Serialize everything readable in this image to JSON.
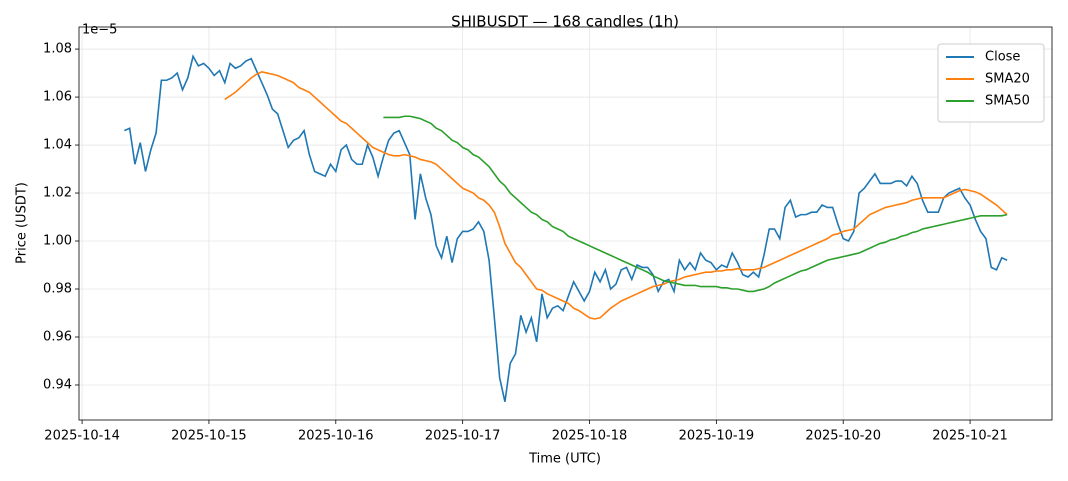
{
  "chart_data": {
    "type": "line",
    "title": "SHIBUSDT — 168 candles (1h)",
    "x_label": "Time (UTC)",
    "y_label": "Price (USDT)",
    "y_offset_label": "1e−5",
    "x": [
      "2025-10-14T08:00",
      "2025-10-14T09:00",
      "2025-10-14T10:00",
      "2025-10-14T11:00",
      "2025-10-14T12:00",
      "2025-10-14T13:00",
      "2025-10-14T14:00",
      "2025-10-14T15:00",
      "2025-10-14T16:00",
      "2025-10-14T17:00",
      "2025-10-14T18:00",
      "2025-10-14T19:00",
      "2025-10-14T20:00",
      "2025-10-14T21:00",
      "2025-10-14T22:00",
      "2025-10-14T23:00",
      "2025-10-15T00:00",
      "2025-10-15T01:00",
      "2025-10-15T02:00",
      "2025-10-15T03:00",
      "2025-10-15T04:00",
      "2025-10-15T05:00",
      "2025-10-15T06:00",
      "2025-10-15T07:00",
      "2025-10-15T08:00",
      "2025-10-15T09:00",
      "2025-10-15T10:00",
      "2025-10-15T11:00",
      "2025-10-15T12:00",
      "2025-10-15T13:00",
      "2025-10-15T14:00",
      "2025-10-15T15:00",
      "2025-10-15T16:00",
      "2025-10-15T17:00",
      "2025-10-15T18:00",
      "2025-10-15T19:00",
      "2025-10-15T20:00",
      "2025-10-15T21:00",
      "2025-10-15T22:00",
      "2025-10-15T23:00",
      "2025-10-16T00:00",
      "2025-10-16T01:00",
      "2025-10-16T02:00",
      "2025-10-16T03:00",
      "2025-10-16T04:00",
      "2025-10-16T05:00",
      "2025-10-16T06:00",
      "2025-10-16T07:00",
      "2025-10-16T08:00",
      "2025-10-16T09:00",
      "2025-10-16T10:00",
      "2025-10-16T11:00",
      "2025-10-16T12:00",
      "2025-10-16T13:00",
      "2025-10-16T14:00",
      "2025-10-16T15:00",
      "2025-10-16T16:00",
      "2025-10-16T17:00",
      "2025-10-16T18:00",
      "2025-10-16T19:00",
      "2025-10-16T20:00",
      "2025-10-16T21:00",
      "2025-10-16T22:00",
      "2025-10-16T23:00",
      "2025-10-17T00:00",
      "2025-10-17T01:00",
      "2025-10-17T02:00",
      "2025-10-17T03:00",
      "2025-10-17T04:00",
      "2025-10-17T05:00",
      "2025-10-17T06:00",
      "2025-10-17T07:00",
      "2025-10-17T08:00",
      "2025-10-17T09:00",
      "2025-10-17T10:00",
      "2025-10-17T11:00",
      "2025-10-17T12:00",
      "2025-10-17T13:00",
      "2025-10-17T14:00",
      "2025-10-17T15:00",
      "2025-10-17T16:00",
      "2025-10-17T17:00",
      "2025-10-17T18:00",
      "2025-10-17T19:00",
      "2025-10-17T20:00",
      "2025-10-17T21:00",
      "2025-10-17T22:00",
      "2025-10-17T23:00",
      "2025-10-18T00:00",
      "2025-10-18T01:00",
      "2025-10-18T02:00",
      "2025-10-18T03:00",
      "2025-10-18T04:00",
      "2025-10-18T05:00",
      "2025-10-18T06:00",
      "2025-10-18T07:00",
      "2025-10-18T08:00",
      "2025-10-18T09:00",
      "2025-10-18T10:00",
      "2025-10-18T11:00",
      "2025-10-18T12:00",
      "2025-10-18T13:00",
      "2025-10-18T14:00",
      "2025-10-18T15:00",
      "2025-10-18T16:00",
      "2025-10-18T17:00",
      "2025-10-18T18:00",
      "2025-10-18T19:00",
      "2025-10-18T20:00",
      "2025-10-18T21:00",
      "2025-10-18T22:00",
      "2025-10-18T23:00",
      "2025-10-19T00:00",
      "2025-10-19T01:00",
      "2025-10-19T02:00",
      "2025-10-19T03:00",
      "2025-10-19T04:00",
      "2025-10-19T05:00",
      "2025-10-19T06:00",
      "2025-10-19T07:00",
      "2025-10-19T08:00",
      "2025-10-19T09:00",
      "2025-10-19T10:00",
      "2025-10-19T11:00",
      "2025-10-19T12:00",
      "2025-10-19T13:00",
      "2025-10-19T14:00",
      "2025-10-19T15:00",
      "2025-10-19T16:00",
      "2025-10-19T17:00",
      "2025-10-19T18:00",
      "2025-10-19T19:00",
      "2025-10-19T20:00",
      "2025-10-19T21:00",
      "2025-10-19T22:00",
      "2025-10-19T23:00",
      "2025-10-20T00:00",
      "2025-10-20T01:00",
      "2025-10-20T02:00",
      "2025-10-20T03:00",
      "2025-10-20T04:00",
      "2025-10-20T05:00",
      "2025-10-20T06:00",
      "2025-10-20T07:00",
      "2025-10-20T08:00",
      "2025-10-20T09:00",
      "2025-10-20T10:00",
      "2025-10-20T11:00",
      "2025-10-20T12:00",
      "2025-10-20T13:00",
      "2025-10-20T14:00",
      "2025-10-20T15:00",
      "2025-10-20T16:00",
      "2025-10-20T17:00",
      "2025-10-20T18:00",
      "2025-10-20T19:00",
      "2025-10-20T20:00",
      "2025-10-20T21:00",
      "2025-10-20T22:00",
      "2025-10-20T23:00",
      "2025-10-21T00:00",
      "2025-10-21T01:00",
      "2025-10-21T02:00",
      "2025-10-21T03:00",
      "2025-10-21T04:00",
      "2025-10-21T05:00",
      "2025-10-21T06:00",
      "2025-10-21T07:00"
    ],
    "series": [
      {
        "name": "Close",
        "color": "#1f77b4",
        "values": [
          1.046,
          1.047,
          1.032,
          1.041,
          1.029,
          1.038,
          1.045,
          1.067,
          1.067,
          1.068,
          1.07,
          1.063,
          1.068,
          1.077,
          1.073,
          1.074,
          1.072,
          1.069,
          1.071,
          1.066,
          1.074,
          1.072,
          1.073,
          1.075,
          1.076,
          1.071,
          1.066,
          1.061,
          1.055,
          1.053,
          1.046,
          1.039,
          1.042,
          1.043,
          1.046,
          1.036,
          1.029,
          1.028,
          1.027,
          1.032,
          1.029,
          1.038,
          1.04,
          1.034,
          1.032,
          1.032,
          1.04,
          1.035,
          1.027,
          1.035,
          1.042,
          1.045,
          1.046,
          1.041,
          1.036,
          1.009,
          1.028,
          1.018,
          1.011,
          0.998,
          0.993,
          1.002,
          0.991,
          1.001,
          1.004,
          1.004,
          1.005,
          1.008,
          1.004,
          0.992,
          0.968,
          0.943,
          0.933,
          0.949,
          0.953,
          0.969,
          0.962,
          0.968,
          0.958,
          0.978,
          0.968,
          0.972,
          0.973,
          0.971,
          0.977,
          0.983,
          0.979,
          0.975,
          0.979,
          0.987,
          0.983,
          0.988,
          0.98,
          0.982,
          0.988,
          0.989,
          0.984,
          0.99,
          0.989,
          0.989,
          0.986,
          0.979,
          0.983,
          0.984,
          0.979,
          0.992,
          0.988,
          0.991,
          0.988,
          0.995,
          0.992,
          0.991,
          0.988,
          0.99,
          0.989,
          0.995,
          0.991,
          0.986,
          0.985,
          0.987,
          0.985,
          0.994,
          1.005,
          1.005,
          1.001,
          1.014,
          1.017,
          1.01,
          1.011,
          1.011,
          1.012,
          1.012,
          1.015,
          1.014,
          1.014,
          1.007,
          1.001,
          1.0,
          1.004,
          1.02,
          1.022,
          1.025,
          1.028,
          1.024,
          1.024,
          1.024,
          1.025,
          1.025,
          1.023,
          1.027,
          1.024,
          1.017,
          1.012,
          1.012,
          1.012,
          1.018,
          1.02,
          1.021,
          1.022,
          1.018,
          1.015,
          1.009,
          1.004,
          1.001,
          0.989,
          0.988,
          0.993,
          0.992
        ]
      },
      {
        "name": "SMA20",
        "color": "#ff7f0e",
        "values": [
          null,
          null,
          null,
          null,
          null,
          null,
          null,
          null,
          null,
          null,
          null,
          null,
          null,
          null,
          null,
          null,
          null,
          null,
          null,
          1.059,
          1.0605,
          1.062,
          1.064,
          1.066,
          1.068,
          1.0695,
          1.0705,
          1.07,
          1.0695,
          1.069,
          1.068,
          1.067,
          1.066,
          1.064,
          1.063,
          1.062,
          1.06,
          1.058,
          1.056,
          1.054,
          1.052,
          1.05,
          1.049,
          1.047,
          1.045,
          1.043,
          1.041,
          1.039,
          1.038,
          1.037,
          1.036,
          1.0355,
          1.0355,
          1.036,
          1.0355,
          1.035,
          1.034,
          1.0335,
          1.033,
          1.032,
          1.03,
          1.028,
          1.026,
          1.024,
          1.022,
          1.021,
          1.02,
          1.018,
          1.017,
          1.015,
          1.012,
          1.006,
          0.999,
          0.995,
          0.991,
          0.989,
          0.986,
          0.983,
          0.98,
          0.9795,
          0.978,
          0.977,
          0.976,
          0.975,
          0.974,
          0.972,
          0.971,
          0.9695,
          0.968,
          0.9675,
          0.968,
          0.97,
          0.972,
          0.9735,
          0.975,
          0.976,
          0.977,
          0.978,
          0.979,
          0.98,
          0.981,
          0.9815,
          0.982,
          0.983,
          0.9835,
          0.984,
          0.985,
          0.9855,
          0.986,
          0.9865,
          0.987,
          0.987,
          0.9875,
          0.9875,
          0.988,
          0.988,
          0.9885,
          0.988,
          0.988,
          0.988,
          0.9885,
          0.989,
          0.99,
          0.991,
          0.992,
          0.993,
          0.994,
          0.995,
          0.996,
          0.997,
          0.998,
          0.999,
          1.0,
          1.001,
          1.0025,
          1.003,
          1.004,
          1.0045,
          1.005,
          1.007,
          1.009,
          1.011,
          1.012,
          1.013,
          1.014,
          1.0145,
          1.015,
          1.0155,
          1.016,
          1.017,
          1.0175,
          1.018,
          1.018,
          1.018,
          1.018,
          1.018,
          1.019,
          1.02,
          1.021,
          1.0215,
          1.021,
          1.0205,
          1.0195,
          1.018,
          1.0165,
          1.015,
          1.013,
          1.011
        ]
      },
      {
        "name": "SMA50",
        "color": "#2ca02c",
        "values": [
          null,
          null,
          null,
          null,
          null,
          null,
          null,
          null,
          null,
          null,
          null,
          null,
          null,
          null,
          null,
          null,
          null,
          null,
          null,
          null,
          null,
          null,
          null,
          null,
          null,
          null,
          null,
          null,
          null,
          null,
          null,
          null,
          null,
          null,
          null,
          null,
          null,
          null,
          null,
          null,
          null,
          null,
          null,
          null,
          null,
          null,
          null,
          null,
          null,
          1.0515,
          1.0515,
          1.0515,
          1.0515,
          1.052,
          1.052,
          1.0515,
          1.051,
          1.05,
          1.049,
          1.047,
          1.046,
          1.044,
          1.042,
          1.041,
          1.039,
          1.038,
          1.036,
          1.035,
          1.033,
          1.031,
          1.028,
          1.025,
          1.023,
          1.02,
          1.018,
          1.016,
          1.014,
          1.012,
          1.011,
          1.009,
          1.008,
          1.006,
          1.005,
          1.004,
          1.002,
          1.001,
          1.0,
          0.999,
          0.998,
          0.997,
          0.996,
          0.995,
          0.994,
          0.993,
          0.992,
          0.991,
          0.99,
          0.989,
          0.988,
          0.987,
          0.9855,
          0.9845,
          0.9835,
          0.983,
          0.9825,
          0.982,
          0.9815,
          0.9815,
          0.9815,
          0.981,
          0.981,
          0.981,
          0.981,
          0.9805,
          0.9805,
          0.98,
          0.98,
          0.9795,
          0.979,
          0.979,
          0.9795,
          0.98,
          0.981,
          0.9825,
          0.9835,
          0.9845,
          0.9855,
          0.9865,
          0.9875,
          0.988,
          0.989,
          0.99,
          0.991,
          0.992,
          0.9925,
          0.993,
          0.9935,
          0.994,
          0.9945,
          0.995,
          0.996,
          0.997,
          0.998,
          0.999,
          0.9995,
          1.0005,
          1.001,
          1.002,
          1.0025,
          1.0035,
          1.004,
          1.005,
          1.0055,
          1.006,
          1.0065,
          1.007,
          1.0075,
          1.008,
          1.0085,
          1.009,
          1.0095,
          1.01,
          1.0105,
          1.0105,
          1.0105,
          1.0105,
          1.0105,
          1.011
        ]
      }
    ],
    "xlim": [
      "2025-10-13T23:25",
      "2025-10-21T15:30"
    ],
    "xticks": [
      "2025-10-14",
      "2025-10-15",
      "2025-10-16",
      "2025-10-17",
      "2025-10-18",
      "2025-10-19",
      "2025-10-20",
      "2025-10-21"
    ],
    "ylim": [
      0.9254,
      1.0892
    ],
    "yticks": [
      0.94,
      0.96,
      0.98,
      {
        "value": 1,
        "label": "1.00"
      },
      1.02,
      1.04,
      1.06,
      1.08
    ],
    "grid": true,
    "legend": "upper right"
  }
}
